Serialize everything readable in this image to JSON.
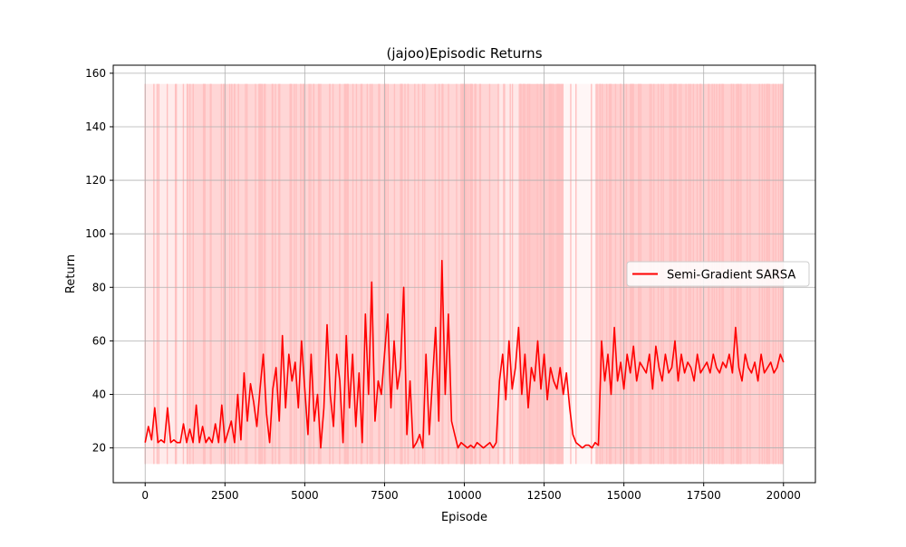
{
  "chart_data": {
    "type": "line",
    "title": "(jajoo)Episodic Returns",
    "xlabel": "Episode",
    "ylabel": "Return",
    "xlim": [
      -1000,
      21000
    ],
    "ylim": [
      7,
      163
    ],
    "xticks": [
      0,
      2500,
      5000,
      7500,
      10000,
      12500,
      15000,
      17500,
      20000
    ],
    "yticks": [
      20,
      40,
      60,
      80,
      100,
      120,
      140,
      160
    ],
    "grid": true,
    "legend_position": "center-right",
    "colors": {
      "raw": "#ffc0c0",
      "smoothed": "#ff0000"
    },
    "series": [
      {
        "name": "Semi-Gradient SARSA",
        "kind": "smoothed",
        "x": [
          0,
          100,
          200,
          300,
          400,
          500,
          600,
          700,
          800,
          900,
          1000,
          1100,
          1200,
          1300,
          1400,
          1500,
          1600,
          1700,
          1800,
          1900,
          2000,
          2100,
          2200,
          2300,
          2400,
          2500,
          2600,
          2700,
          2800,
          2900,
          3000,
          3100,
          3200,
          3300,
          3400,
          3500,
          3600,
          3700,
          3800,
          3900,
          4000,
          4100,
          4200,
          4300,
          4400,
          4500,
          4600,
          4700,
          4800,
          4900,
          5000,
          5100,
          5200,
          5300,
          5400,
          5500,
          5600,
          5700,
          5800,
          5900,
          6000,
          6100,
          6200,
          6300,
          6400,
          6500,
          6600,
          6700,
          6800,
          6900,
          7000,
          7100,
          7200,
          7300,
          7400,
          7500,
          7600,
          7700,
          7800,
          7900,
          8000,
          8100,
          8200,
          8300,
          8400,
          8500,
          8600,
          8700,
          8800,
          8900,
          9000,
          9100,
          9200,
          9300,
          9400,
          9500,
          9600,
          9700,
          9800,
          9900,
          10000,
          10100,
          10200,
          10300,
          10400,
          10500,
          10600,
          10700,
          10800,
          10900,
          11000,
          11100,
          11200,
          11300,
          11400,
          11500,
          11600,
          11700,
          11800,
          11900,
          12000,
          12100,
          12200,
          12300,
          12400,
          12500,
          12600,
          12700,
          12800,
          12900,
          13000,
          13100,
          13200,
          13300,
          13400,
          13500,
          13600,
          13700,
          13800,
          13900,
          14000,
          14100,
          14200,
          14300,
          14400,
          14500,
          14600,
          14700,
          14800,
          14900,
          15000,
          15100,
          15200,
          15300,
          15400,
          15500,
          15600,
          15700,
          15800,
          15900,
          16000,
          16100,
          16200,
          16300,
          16400,
          16500,
          16600,
          16700,
          16800,
          16900,
          17000,
          17100,
          17200,
          17300,
          17400,
          17500,
          17600,
          17700,
          17800,
          17900,
          18000,
          18100,
          18200,
          18300,
          18400,
          18500,
          18600,
          18700,
          18800,
          18900,
          19000,
          19100,
          19200,
          19300,
          19400,
          19500,
          19600,
          19700,
          19800,
          19900,
          20000
        ],
        "y": [
          22,
          28,
          23,
          35,
          22,
          23,
          22,
          35,
          22,
          23,
          22,
          22,
          29,
          22,
          27,
          22,
          36,
          22,
          28,
          22,
          24,
          22,
          29,
          22,
          36,
          22,
          26,
          30,
          22,
          40,
          23,
          48,
          30,
          44,
          37,
          28,
          42,
          55,
          33,
          22,
          42,
          50,
          30,
          62,
          35,
          55,
          45,
          52,
          35,
          60,
          42,
          25,
          55,
          30,
          40,
          20,
          35,
          66,
          40,
          28,
          55,
          45,
          22,
          62,
          35,
          55,
          28,
          48,
          22,
          70,
          40,
          82,
          30,
          45,
          40,
          55,
          70,
          35,
          60,
          42,
          50,
          80,
          25,
          45,
          20,
          22,
          25,
          20,
          55,
          25,
          45,
          65,
          30,
          90,
          40,
          70,
          30,
          25,
          20,
          22,
          21,
          20,
          21,
          20,
          22,
          21,
          20,
          21,
          22,
          20,
          22,
          45,
          55,
          38,
          60,
          42,
          50,
          65,
          40,
          55,
          35,
          50,
          45,
          60,
          42,
          55,
          38,
          50,
          45,
          42,
          50,
          40,
          48,
          35,
          25,
          22,
          21,
          20,
          21,
          21,
          20,
          22,
          21,
          60,
          45,
          55,
          40,
          65,
          45,
          52,
          42,
          55,
          48,
          58,
          45,
          52,
          50,
          48,
          55,
          42,
          58,
          50,
          45,
          55,
          48,
          50,
          60,
          45,
          55,
          48,
          52,
          50,
          45,
          55,
          48,
          50,
          52,
          48,
          55,
          50,
          48,
          52,
          50,
          55,
          48,
          65,
          50,
          45,
          55,
          50,
          48,
          52,
          45,
          55,
          48,
          50,
          52,
          48,
          50,
          55,
          52
        ]
      }
    ],
    "raw_band": {
      "kind": "raw",
      "low": 14,
      "high": 156,
      "dense_segments": [
        [
          0,
          1300,
          0.35
        ],
        [
          1300,
          11100,
          0.72
        ],
        [
          11100,
          11700,
          0.4
        ],
        [
          11700,
          13100,
          0.95
        ],
        [
          13100,
          14100,
          0.15
        ],
        [
          14100,
          20000,
          0.82
        ]
      ]
    }
  }
}
